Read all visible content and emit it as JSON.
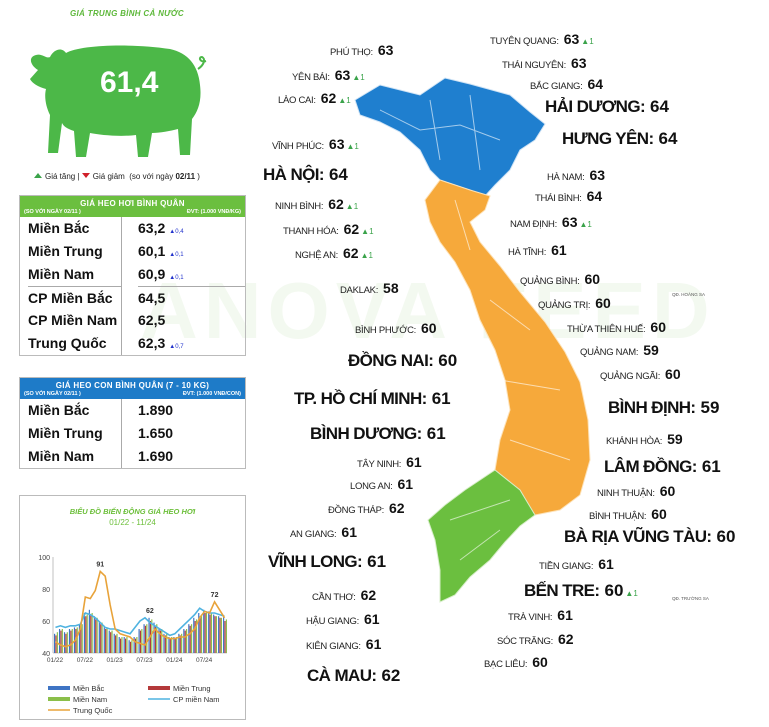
{
  "header": {
    "title": "GIÁ TRUNG BÌNH CẢ NƯỚC",
    "average": "61,4"
  },
  "legend": {
    "up": "Giá tăng",
    "sep": "|",
    "down": "Giá giảm",
    "compare": "(so với ngày",
    "date": "02/11",
    "close": ")"
  },
  "colors": {
    "green": "#4cb848",
    "blue": "#1e7bc8",
    "north": "#1f7fcf",
    "central": "#f6a93b",
    "south": "#6bbf3f",
    "up": "#3aa34a",
    "down": "#d0202a"
  },
  "live_pig": {
    "title": "GIÁ HEO HƠI BÌNH QUÂN",
    "compare": "(SO VỚI NGÀY 02/11 )",
    "unit": "ĐVT: (1.000 VNĐ/KG)",
    "rows": [
      {
        "region": "Miền Bắc",
        "price": "63,2",
        "delta": "▲0,4"
      },
      {
        "region": "Miền Trung",
        "price": "60,1",
        "delta": "▲0,1"
      },
      {
        "region": "Miền Nam",
        "price": "60,9",
        "delta": "▲0,1"
      },
      {
        "region": "CP Miền Bắc",
        "price": "64,5",
        "delta": ""
      },
      {
        "region": "CP Miền Nam",
        "price": "62,5",
        "delta": ""
      },
      {
        "region": "Trung Quốc",
        "price": "62,3",
        "delta": "▲0,7"
      }
    ]
  },
  "piglet": {
    "title": "GIÁ HEO CON BÌNH QUÂN (7 - 10 KG)",
    "compare": "(SO VỚI NGÀY 02/11 )",
    "unit": "ĐVT: (1.000 VNĐ/CON)",
    "rows": [
      {
        "region": "Miền Bắc",
        "price": "1.890"
      },
      {
        "region": "Miền Trung",
        "price": "1.650"
      },
      {
        "region": "Miền Nam",
        "price": "1.690"
      }
    ]
  },
  "watermark": "ANOVA FEED",
  "chart_data": {
    "type": "bar+line",
    "title": "BIỂU ĐỒ BIẾN ĐỘNG GIÁ HEO HƠI",
    "subtitle": "01/22 - 11/24",
    "ylim": [
      40,
      100
    ],
    "yticks": [
      "40",
      "60",
      "80",
      "100"
    ],
    "xticks": [
      "01/22",
      "07/22",
      "01/23",
      "07/23",
      "01/24",
      "07/24"
    ],
    "annotations": [
      "91",
      "62",
      "72"
    ],
    "series": [
      {
        "name": "Miền Bắc",
        "kind": "bar",
        "color": "#3e74c4",
        "values": [
          52,
          55,
          53,
          55,
          56,
          58,
          65,
          67,
          63,
          60,
          57,
          54,
          52,
          50,
          50,
          48,
          50,
          55,
          58,
          62,
          59,
          55,
          52,
          50,
          50,
          52,
          55,
          58,
          62,
          65,
          67,
          66,
          64,
          63,
          63
        ]
      },
      {
        "name": "Miền Trung",
        "kind": "bar",
        "color": "#b4393a",
        "values": [
          51,
          54,
          52,
          54,
          55,
          57,
          63,
          64,
          61,
          58,
          55,
          53,
          51,
          49,
          49,
          47,
          49,
          54,
          57,
          60,
          57,
          54,
          51,
          49,
          49,
          51,
          54,
          57,
          60,
          63,
          65,
          64,
          63,
          62,
          60
        ]
      },
      {
        "name": "Miền Nam",
        "kind": "bar",
        "color": "#8bbf4a",
        "values": [
          53,
          55,
          53,
          55,
          56,
          58,
          64,
          65,
          62,
          59,
          56,
          54,
          52,
          50,
          50,
          48,
          50,
          55,
          58,
          61,
          58,
          55,
          52,
          50,
          50,
          52,
          55,
          58,
          61,
          64,
          66,
          65,
          63,
          62,
          61
        ]
      },
      {
        "name": "CP miền Nam",
        "kind": "line",
        "color": "#4fb3e0",
        "values": [
          56,
          57,
          56,
          57,
          57,
          58,
          65,
          64,
          62,
          59,
          56,
          55,
          55,
          54,
          53,
          52,
          56,
          60,
          62,
          59,
          57,
          55,
          53,
          51,
          52,
          55,
          58,
          61,
          64,
          68,
          66,
          65,
          65,
          64,
          63
        ]
      },
      {
        "name": "Trung Quốc",
        "kind": "line",
        "color": "#e8a33a",
        "values": [
          47,
          45,
          44,
          45,
          48,
          55,
          75,
          74,
          79,
          91,
          88,
          70,
          55,
          52,
          51,
          50,
          47,
          46,
          45,
          50,
          55,
          52,
          50,
          49,
          49,
          50,
          50,
          52,
          55,
          62,
          66,
          65,
          72,
          67,
          62
        ]
      }
    ]
  },
  "map": {
    "labels": [
      {
        "name": "PHÚ THỌ:",
        "value": "63",
        "delta": ""
      },
      {
        "name": "TUYÊN QUANG:",
        "value": "63",
        "delta": "▲1"
      },
      {
        "name": "YÊN BÁI:",
        "value": "63",
        "delta": "▲1"
      },
      {
        "name": "THÁI NGUYÊN:",
        "value": "63",
        "delta": ""
      },
      {
        "name": "LÀO CAI:",
        "value": "62",
        "delta": "▲1"
      },
      {
        "name": "BẮC GIANG:",
        "value": "64",
        "delta": ""
      },
      {
        "name": "HẢI DƯƠNG:",
        "value": "64",
        "delta": ""
      },
      {
        "name": "VĨNH PHÚC:",
        "value": "63",
        "delta": "▲1"
      },
      {
        "name": "HƯNG YÊN:",
        "value": "64",
        "delta": ""
      },
      {
        "name": "HÀ NỘI:",
        "value": "64",
        "delta": ""
      },
      {
        "name": "HÀ NAM:",
        "value": "63",
        "delta": ""
      },
      {
        "name": "THÁI BÌNH:",
        "value": "64",
        "delta": ""
      },
      {
        "name": "NINH BÌNH:",
        "value": "62",
        "delta": "▲1"
      },
      {
        "name": "NAM ĐỊNH:",
        "value": "63",
        "delta": "▲1"
      },
      {
        "name": "THANH HÓA:",
        "value": "62",
        "delta": "▲1"
      },
      {
        "name": "NGHỆ AN:",
        "value": "62",
        "delta": "▲1"
      },
      {
        "name": "HÀ TĨNH:",
        "value": "61",
        "delta": ""
      },
      {
        "name": "QUẢNG BÌNH:",
        "value": "60",
        "delta": ""
      },
      {
        "name": "DAKLAK:",
        "value": "58",
        "delta": ""
      },
      {
        "name": "QUẢNG TRỊ:",
        "value": "60",
        "delta": ""
      },
      {
        "name": "BÌNH PHƯỚC:",
        "value": "60",
        "delta": ""
      },
      {
        "name": "THỪA THIÊN HUẾ:",
        "value": "60",
        "delta": ""
      },
      {
        "name": "QUẢNG NAM:",
        "value": "59",
        "delta": ""
      },
      {
        "name": "ĐỒNG NAI:",
        "value": "60",
        "delta": ""
      },
      {
        "name": "QUẢNG NGÃI:",
        "value": "60",
        "delta": ""
      },
      {
        "name": "TP. HỒ CHÍ MINH:",
        "value": "61",
        "delta": ""
      },
      {
        "name": "BÌNH ĐỊNH:",
        "value": "59",
        "delta": ""
      },
      {
        "name": "BÌNH DƯƠNG:",
        "value": "61",
        "delta": ""
      },
      {
        "name": "KHÁNH HÒA:",
        "value": "59",
        "delta": ""
      },
      {
        "name": "TÂY NINH:",
        "value": "61",
        "delta": ""
      },
      {
        "name": "LÂM ĐỒNG:",
        "value": "61",
        "delta": ""
      },
      {
        "name": "LONG AN:",
        "value": "61",
        "delta": ""
      },
      {
        "name": "NINH THUẬN:",
        "value": "60",
        "delta": ""
      },
      {
        "name": "ĐỒNG THÁP:",
        "value": "62",
        "delta": ""
      },
      {
        "name": "BÌNH THUẬN:",
        "value": "60",
        "delta": ""
      },
      {
        "name": "AN GIANG:",
        "value": "61",
        "delta": ""
      },
      {
        "name": "BÀ RỊA VŨNG TÀU:",
        "value": "60",
        "delta": ""
      },
      {
        "name": "VĨNH LONG:",
        "value": "61",
        "delta": ""
      },
      {
        "name": "TIỀN GIANG:",
        "value": "61",
        "delta": ""
      },
      {
        "name": "BẾN TRE:",
        "value": "60",
        "delta": "▲1"
      },
      {
        "name": "CẦN THƠ:",
        "value": "62",
        "delta": ""
      },
      {
        "name": "TRÀ VINH:",
        "value": "61",
        "delta": ""
      },
      {
        "name": "HẬU GIANG:",
        "value": "61",
        "delta": ""
      },
      {
        "name": "SÓC TRĂNG:",
        "value": "62",
        "delta": ""
      },
      {
        "name": "KIÊN GIANG:",
        "value": "61",
        "delta": ""
      },
      {
        "name": "BẠC LIÊU:",
        "value": "60",
        "delta": ""
      },
      {
        "name": "CÀ MAU:",
        "value": "62",
        "delta": ""
      }
    ],
    "islands": [
      "QĐ. HOÀNG SA",
      "QĐ. TRƯỜNG SA"
    ]
  }
}
